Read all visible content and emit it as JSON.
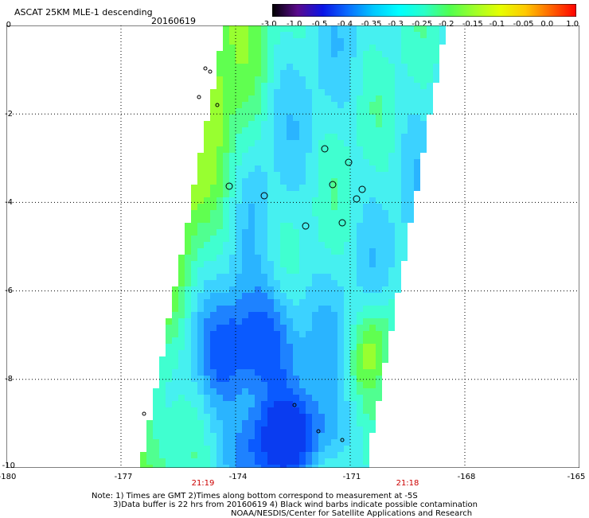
{
  "header": {
    "title": "ASCAT 25KM MLE-1 descending",
    "date": "20160619"
  },
  "colorbar": {
    "labels": [
      "-3.0",
      "-1.0",
      "-0.5",
      "-0.4",
      "-0.35",
      "-0.3",
      "-0.25",
      "-0.2",
      "-0.15",
      "-0.1",
      "-0.05",
      "0.0",
      "1.0"
    ],
    "colors": [
      "#000000",
      "#5a0a8c",
      "#0a14e6",
      "#0a6eff",
      "#00c8ff",
      "#00ffff",
      "#28ffc8",
      "#50ff50",
      "#a0ff28",
      "#e6ff00",
      "#ffc800",
      "#ff6400",
      "#ff0000"
    ]
  },
  "axes": {
    "y_ticks": [
      "0",
      "-2",
      "-4",
      "-6",
      "-8",
      "-10"
    ],
    "x_ticks": [
      "-180",
      "-177",
      "-174",
      "-171",
      "-168",
      "-165"
    ],
    "lat_range": [
      -10,
      0
    ],
    "lon_range": [
      -180,
      -165
    ],
    "grid": true
  },
  "times": [
    "21:19",
    "21:18"
  ],
  "notes": {
    "line1": "Note: 1) Times are GMT 2)Times along bottom correspond to measurement at -5S",
    "line2": "3)Data buffer is 22 hrs from 20160619 4) Black wind barbs indicate possible contamination",
    "line3": "NOAA/NESDIS/Center for Satellite Applications and Research"
  }
}
